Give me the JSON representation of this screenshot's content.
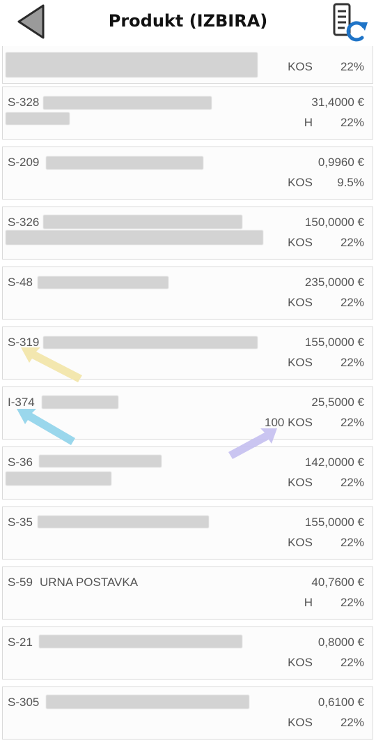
{
  "header": {
    "title": "Produkt (IZBIRA)",
    "back_icon": "back-triangle-icon",
    "refresh_icon": "document-refresh-icon"
  },
  "products": [
    {
      "code": "",
      "name": "",
      "price": "",
      "unit": "KOS",
      "vat": "22%"
    },
    {
      "code": "S-328",
      "name": "",
      "price": "31,4000 €",
      "unit": "H",
      "vat": "22%"
    },
    {
      "code": "S-209",
      "name": "",
      "price": "0,9960 €",
      "unit": "KOS",
      "vat": "9.5%"
    },
    {
      "code": "S-326",
      "name": "",
      "price": "150,0000 €",
      "unit": "KOS",
      "vat": "22%"
    },
    {
      "code": "S-48",
      "name": "",
      "price": "235,0000 €",
      "unit": "KOS",
      "vat": "22%"
    },
    {
      "code": "S-319",
      "name": "",
      "price": "155,0000 €",
      "unit": "KOS",
      "vat": "22%"
    },
    {
      "code": "I-374",
      "name": "",
      "price": "25,5000 €",
      "unit": "100 KOS",
      "vat": "22%"
    },
    {
      "code": "S-36",
      "name": "",
      "price": "142,0000 €",
      "unit": "KOS",
      "vat": "22%"
    },
    {
      "code": "S-35",
      "name": "",
      "price": "155,0000 €",
      "unit": "KOS",
      "vat": "22%"
    },
    {
      "code": "S-59",
      "name": "URNA POSTAVKA",
      "price": "40,7600 €",
      "unit": "H",
      "vat": "22%"
    },
    {
      "code": "S-21",
      "name": "",
      "price": "0,8000 €",
      "unit": "KOS",
      "vat": "22%"
    },
    {
      "code": "S-305",
      "name": "",
      "price": "0,6100 €",
      "unit": "KOS",
      "vat": "22%"
    }
  ],
  "colors": {
    "arrow_yellow": "#f2e4a6",
    "arrow_blue": "#8fd3ea",
    "arrow_purple": "#c4bff0",
    "refresh_blue": "#1f74c7"
  }
}
